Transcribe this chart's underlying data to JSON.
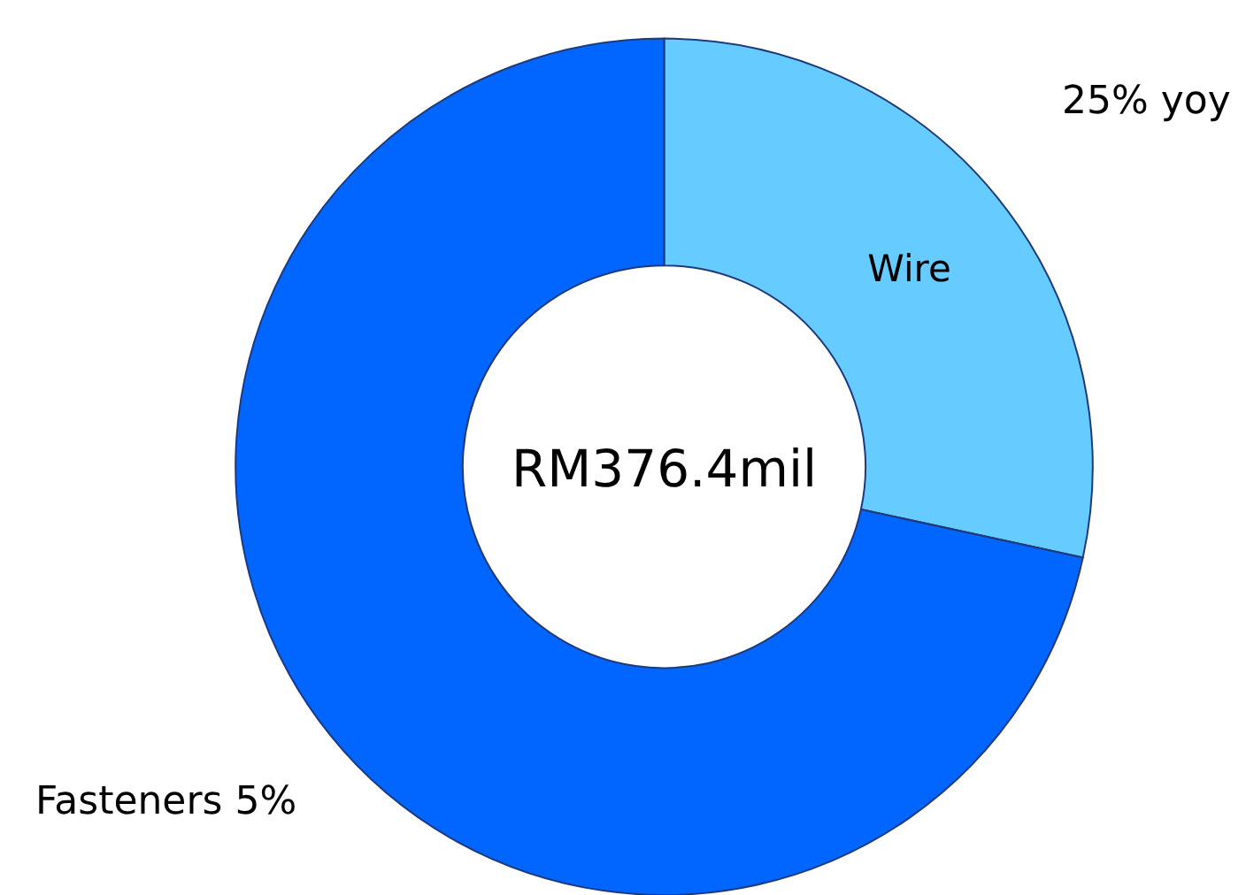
{
  "chart_data": {
    "type": "donut",
    "categories": [
      "Wire",
      "Fasteners"
    ],
    "values": [
      28.4,
      71.6
    ],
    "colors": [
      "#66ccff",
      "#0066ff"
    ],
    "annotations": [
      "RM376.4mil",
      "25% yoy",
      "5%"
    ],
    "legend": false
  }
}
